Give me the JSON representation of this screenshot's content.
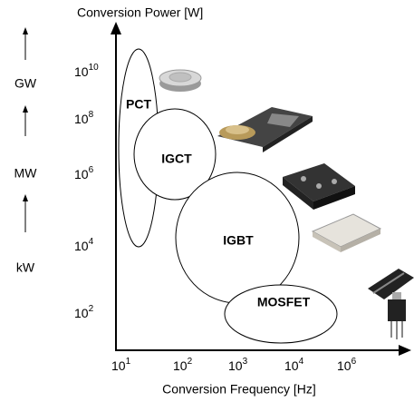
{
  "y_axis_title": "Conversion Power [W]",
  "x_axis_title": "Conversion Frequency  [Hz]",
  "power_units": [
    "GW",
    "MW",
    "kW"
  ],
  "y_ticks": [
    {
      "base": "10",
      "exponent": "10"
    },
    {
      "base": "10",
      "exponent": "8"
    },
    {
      "base": "10",
      "exponent": "6"
    },
    {
      "base": "10",
      "exponent": "4"
    },
    {
      "base": "10",
      "exponent": "2"
    }
  ],
  "x_ticks": [
    {
      "base": "10",
      "exponent": "1"
    },
    {
      "base": "10",
      "exponent": "2"
    },
    {
      "base": "10",
      "exponent": "3"
    },
    {
      "base": "10",
      "exponent": "4"
    },
    {
      "base": "10",
      "exponent": "6"
    }
  ],
  "devices": [
    "PCT",
    "IGCT",
    "IGBT",
    "MOSFET"
  ]
}
